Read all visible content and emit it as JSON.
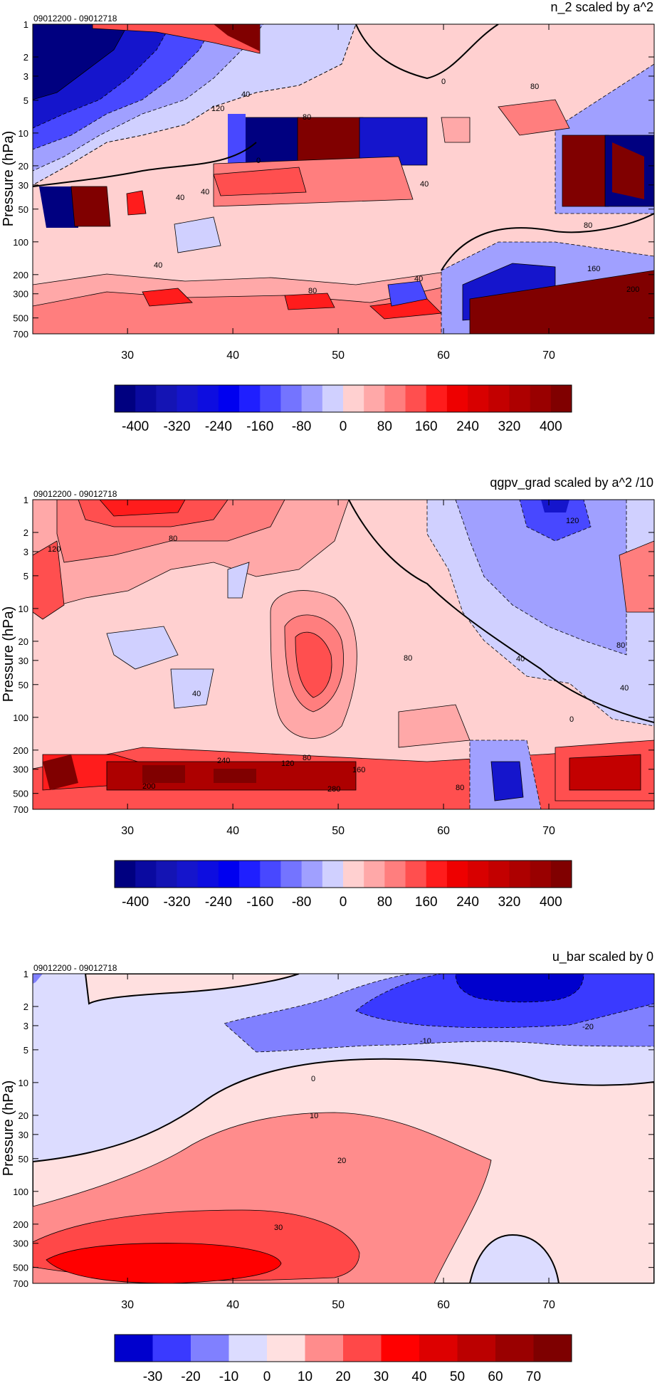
{
  "chart_data": [
    {
      "type": "heatmap",
      "title": "n_2 scaled by a^2",
      "subtitle": "09012200 - 09012718",
      "ylabel": "Pressure (hPa)",
      "xlabel": "",
      "x_ticks": [
        30,
        40,
        50,
        60,
        70
      ],
      "y_ticks": [
        "1",
        "2",
        "3",
        "5",
        "10",
        "20",
        "30",
        "50",
        "100",
        "200",
        "300",
        "500",
        "700"
      ],
      "y_scale": "log (reversed)",
      "xlim": [
        21,
        80
      ],
      "ylim": [
        700,
        1
      ],
      "colorbar": {
        "labels": [
          "-400",
          "-320",
          "-240",
          "-160",
          "-80",
          "0",
          "80",
          "160",
          "240",
          "320",
          "400"
        ],
        "levels": [
          -440,
          -400,
          -360,
          -320,
          -280,
          -240,
          -200,
          -160,
          -120,
          -80,
          -40,
          0,
          40,
          80,
          120,
          160,
          200,
          240,
          280,
          320,
          360,
          400,
          440
        ],
        "colors": [
          "#000080",
          "#0a0aa0",
          "#1414b4",
          "#1515cc",
          "#0d0de0",
          "#0000f0",
          "#1f1fff",
          "#4848ff",
          "#7474ff",
          "#a0a0ff",
          "#d0d0ff",
          "#ffd0d0",
          "#ffa8a8",
          "#ff7e7e",
          "#ff4f4f",
          "#ff1c1c",
          "#ee0000",
          "#d80000",
          "#c30000",
          "#ad0000",
          "#990000",
          "#800000"
        ]
      },
      "contour_labels": [
        "40",
        "120",
        "80",
        "0",
        "40",
        "80",
        "40",
        "40",
        "40",
        "80",
        "160",
        "200",
        "0",
        "80",
        "40"
      ]
    },
    {
      "type": "heatmap",
      "title": "qgpv_grad scaled by a^2 /10",
      "subtitle": "09012200 - 09012718",
      "ylabel": "Pressure (hPa)",
      "xlabel": "",
      "x_ticks": [
        30,
        40,
        50,
        60,
        70
      ],
      "y_ticks": [
        "1",
        "2",
        "3",
        "5",
        "10",
        "20",
        "30",
        "50",
        "100",
        "200",
        "300",
        "500",
        "700"
      ],
      "y_scale": "log (reversed)",
      "xlim": [
        21,
        80
      ],
      "ylim": [
        700,
        1
      ],
      "colorbar": {
        "labels": [
          "-400",
          "-320",
          "-240",
          "-160",
          "-80",
          "0",
          "80",
          "160",
          "240",
          "320",
          "400"
        ],
        "levels": [
          -440,
          -400,
          -360,
          -320,
          -280,
          -240,
          -200,
          -160,
          -120,
          -80,
          -40,
          0,
          40,
          80,
          120,
          160,
          200,
          240,
          280,
          320,
          360,
          400,
          440
        ],
        "colors": [
          "#000080",
          "#0a0aa0",
          "#1414b4",
          "#1515cc",
          "#0d0de0",
          "#0000f0",
          "#1f1fff",
          "#4848ff",
          "#7474ff",
          "#a0a0ff",
          "#d0d0ff",
          "#ffd0d0",
          "#ffa8a8",
          "#ff7e7e",
          "#ff4f4f",
          "#ff1c1c",
          "#ee0000",
          "#d80000",
          "#c30000",
          "#ad0000",
          "#990000",
          "#800000"
        ]
      },
      "contour_labels": [
        "120",
        "80",
        "120",
        "80",
        "40",
        "80",
        "40",
        "40",
        "0",
        "240",
        "120",
        "80",
        "200",
        "280",
        "160",
        "80"
      ]
    },
    {
      "type": "heatmap",
      "title": "u_bar scaled by 0",
      "subtitle": "09012200 - 09012718",
      "ylabel": "Pressure (hPa)",
      "xlabel": "",
      "x_ticks": [
        30,
        40,
        50,
        60,
        70
      ],
      "y_ticks": [
        "1",
        "2",
        "3",
        "5",
        "10",
        "20",
        "30",
        "50",
        "100",
        "200",
        "300",
        "500",
        "700"
      ],
      "y_scale": "log (reversed)",
      "xlim": [
        21,
        80
      ],
      "ylim": [
        700,
        1
      ],
      "colorbar": {
        "labels": [
          "-30",
          "-20",
          "-10",
          "0",
          "10",
          "20",
          "30",
          "40",
          "50",
          "60",
          "70"
        ],
        "levels": [
          -40,
          -30,
          -20,
          -10,
          0,
          10,
          20,
          30,
          40,
          50,
          60,
          70,
          80
        ],
        "colors": [
          "#0000cd",
          "#3a3aff",
          "#8080ff",
          "#dcdcff",
          "#ffe0e0",
          "#ff8c8c",
          "#ff4848",
          "#ff0000",
          "#dd0000",
          "#bb0000",
          "#9a0000",
          "#7e0000"
        ]
      },
      "contour_labels": [
        "-20",
        "-10",
        "0",
        "10",
        "20",
        "30"
      ]
    }
  ]
}
